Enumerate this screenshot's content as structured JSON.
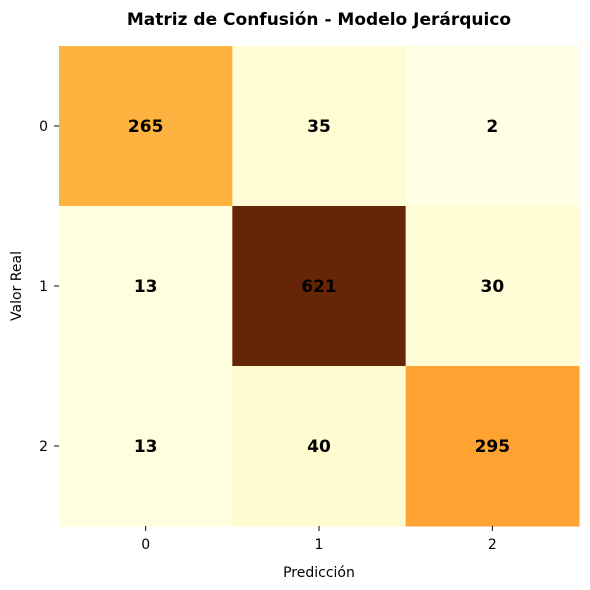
{
  "chart_data": {
    "type": "heatmap",
    "title": "Matriz de Confusión - Modelo Jerárquico",
    "xlabel": "Predicción",
    "ylabel": "Valor Real",
    "x_categories": [
      "0",
      "1",
      "2"
    ],
    "y_categories": [
      "0",
      "1",
      "2"
    ],
    "values": [
      [
        265,
        35,
        2
      ],
      [
        13,
        621,
        30
      ],
      [
        13,
        40,
        295
      ]
    ],
    "colormap": "YlOrBr",
    "colorbar": false,
    "grid": false
  }
}
